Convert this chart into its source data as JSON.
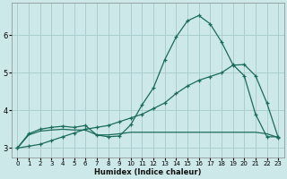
{
  "xlabel": "Humidex (Indice chaleur)",
  "bg_color": "#cce8e8",
  "grid_color": "#aacece",
  "line_color": "#1a6b5a",
  "xlim": [
    -0.5,
    23.5
  ],
  "ylim": [
    2.75,
    6.85
  ],
  "xticks": [
    0,
    1,
    2,
    3,
    4,
    5,
    6,
    7,
    8,
    9,
    10,
    11,
    12,
    13,
    14,
    15,
    16,
    17,
    18,
    19,
    20,
    21,
    22,
    23
  ],
  "yticks": [
    3,
    4,
    5,
    6
  ],
  "line1_x": [
    0,
    1,
    2,
    3,
    4,
    5,
    6,
    7,
    8,
    9,
    10,
    11,
    12,
    13,
    14,
    15,
    16,
    17,
    18,
    19,
    20,
    21,
    22,
    23
  ],
  "line1_y": [
    3.0,
    3.38,
    3.5,
    3.55,
    3.58,
    3.55,
    3.6,
    3.35,
    3.3,
    3.32,
    3.62,
    4.15,
    4.6,
    5.35,
    5.95,
    6.38,
    6.52,
    6.3,
    5.82,
    5.22,
    4.92,
    3.9,
    3.3,
    3.3
  ],
  "line2_x": [
    0,
    1,
    2,
    3,
    4,
    5,
    6,
    7,
    8,
    9,
    10,
    11,
    12,
    13,
    14,
    15,
    16,
    17,
    18,
    19,
    20,
    21,
    22,
    23
  ],
  "line2_y": [
    3.0,
    3.05,
    3.1,
    3.2,
    3.3,
    3.4,
    3.5,
    3.55,
    3.6,
    3.7,
    3.8,
    3.9,
    4.05,
    4.2,
    4.45,
    4.65,
    4.8,
    4.9,
    5.0,
    5.2,
    5.22,
    4.92,
    4.2,
    3.28
  ],
  "line3_x": [
    0,
    1,
    2,
    3,
    4,
    5,
    6,
    7,
    8,
    9,
    10,
    11,
    12,
    13,
    14,
    15,
    16,
    17,
    18,
    19,
    20,
    21,
    22,
    23
  ],
  "line3_y": [
    3.0,
    3.35,
    3.45,
    3.48,
    3.5,
    3.48,
    3.48,
    3.35,
    3.35,
    3.38,
    3.42,
    3.42,
    3.42,
    3.42,
    3.42,
    3.42,
    3.42,
    3.42,
    3.42,
    3.42,
    3.42,
    3.42,
    3.38,
    3.28
  ]
}
